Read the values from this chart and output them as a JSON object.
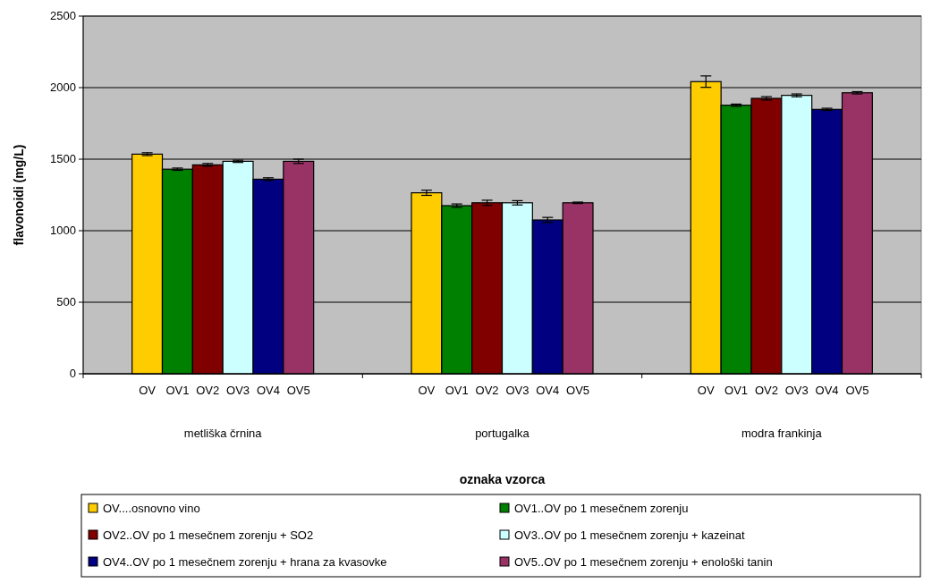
{
  "chart_data": {
    "type": "bar",
    "ylabel": "flavonoidi (mg/L)",
    "xlabel": "oznaka vzorca",
    "categories": [
      "metliška črnina",
      "portugalka",
      "modra frankinja"
    ],
    "series": [
      {
        "name": "OV....osnovno vino",
        "color": "#ffcc00",
        "values": [
          1535,
          1265,
          2042
        ],
        "errors": [
          10,
          18,
          40
        ]
      },
      {
        "name": "OV1..OV po 1 mesečnem zorenju",
        "color": "#008000",
        "values": [
          1430,
          1175,
          1877
        ],
        "errors": [
          8,
          12,
          8
        ]
      },
      {
        "name": "OV2..OV po 1 mesečnem zorenju + SO2",
        "color": "#800000",
        "values": [
          1460,
          1195,
          1925
        ],
        "errors": [
          10,
          18,
          12
        ]
      },
      {
        "name": "OV3..OV po 1 mesečnem zorenju + kazeinat",
        "color": "#ccffff",
        "values": [
          1485,
          1195,
          1946
        ],
        "errors": [
          8,
          15,
          10
        ]
      },
      {
        "name": "OV4..OV po 1 mesečnem zorenju + hrana za kvasovke",
        "color": "#000080",
        "values": [
          1360,
          1075,
          1848
        ],
        "errors": [
          10,
          18,
          8
        ]
      },
      {
        "name": "OV5..OV po 1 mesečnem zorenju + enološki tanin",
        "color": "#993366",
        "values": [
          1485,
          1195,
          1964
        ],
        "errors": [
          15,
          5,
          8
        ]
      }
    ],
    "annotations": [
      "OV",
      "OV1",
      "OV2",
      "OV3",
      "OV4",
      "OV5",
      "OV",
      "OV1",
      "OV2",
      "OV3",
      "OV4",
      "OV5",
      "OV",
      "OV1",
      "OV2",
      "OV3",
      "OV4",
      "OV5"
    ],
    "ylim": [
      0,
      2500
    ],
    "yticks": [
      0,
      500,
      1000,
      1500,
      2000,
      2500
    ],
    "grid": "y",
    "legend": "bottom"
  }
}
